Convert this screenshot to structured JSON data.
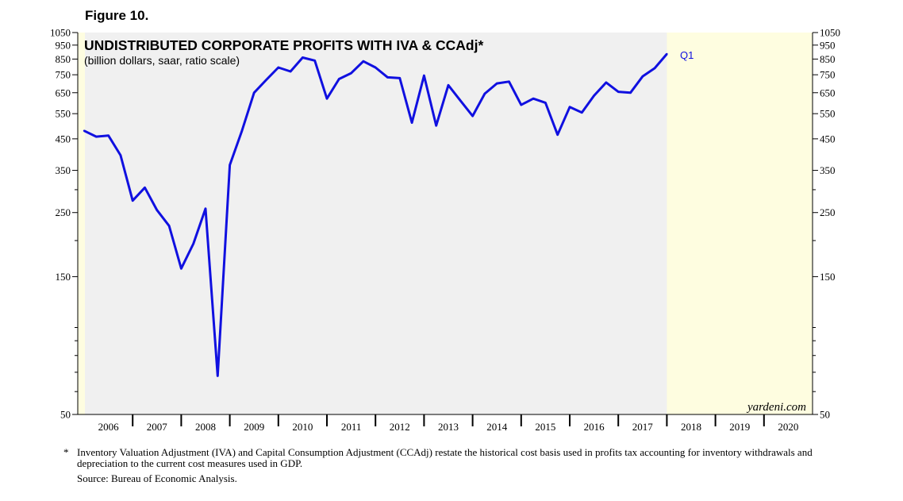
{
  "figure_label": "Figure 10.",
  "footnote": {
    "marker": "*",
    "text": "Inventory Valuation Adjustment (IVA) and Capital Consumption Adjustment (CCAdj) restate the historical cost basis used in profits tax accounting for inventory withdrawals and depreciation to the current cost measures used in GDP.",
    "source": "Source: Bureau of Economic Analysis."
  },
  "colors": {
    "line": "#1010e0",
    "data_background": "#f0f0f0",
    "chart_background": "#fefde0"
  },
  "chart_data": {
    "type": "line",
    "title": "UNDISTRIBUTED CORPORATE PROFITS WITH IVA & CCAdj*",
    "subtitle": "(billion dollars, saar, ratio scale)",
    "watermark": "yardeni.com",
    "end_label": "Q1",
    "y_scale": "log",
    "ylim": [
      50,
      1050
    ],
    "y_ticks": [
      50,
      150,
      250,
      350,
      450,
      550,
      650,
      750,
      850,
      950,
      1050
    ],
    "y_tick_labels_left": [
      "50",
      "150",
      "250",
      "350",
      "450",
      "550",
      "650",
      "750",
      "850",
      "950",
      "1050"
    ],
    "y_tick_labels_right": [
      "50",
      "150",
      "250",
      "350",
      "450",
      "550",
      "650",
      "750",
      "850",
      "950",
      "1050"
    ],
    "x_range": [
      2006,
      2021
    ],
    "x_ticks": [
      2006,
      2007,
      2008,
      2009,
      2010,
      2011,
      2012,
      2013,
      2014,
      2015,
      2016,
      2017,
      2018,
      2019,
      2020,
      2021
    ],
    "x_tick_labels": [
      "2006",
      "2007",
      "2008",
      "2009",
      "2010",
      "2011",
      "2012",
      "2013",
      "2014",
      "2015",
      "2016",
      "2017",
      "2018",
      "2019",
      "2020"
    ],
    "data_end": 2018.0,
    "series": [
      {
        "name": "Undistributed corporate profits",
        "x": [
          2006.0,
          2006.25,
          2006.5,
          2006.75,
          2007.0,
          2007.25,
          2007.5,
          2007.75,
          2008.0,
          2008.25,
          2008.5,
          2008.75,
          2009.0,
          2009.25,
          2009.5,
          2009.75,
          2010.0,
          2010.25,
          2010.5,
          2010.75,
          2011.0,
          2011.25,
          2011.5,
          2011.75,
          2012.0,
          2012.25,
          2012.5,
          2012.75,
          2013.0,
          2013.25,
          2013.5,
          2013.75,
          2014.0,
          2014.25,
          2014.5,
          2014.75,
          2015.0,
          2015.25,
          2015.5,
          2015.75,
          2016.0,
          2016.25,
          2016.5,
          2016.75,
          2017.0,
          2017.25,
          2017.5,
          2017.75,
          2018.0
        ],
        "values": [
          480,
          458,
          462,
          395,
          275,
          305,
          255,
          225,
          160,
          195,
          258,
          68,
          365,
          480,
          650,
          720,
          795,
          770,
          860,
          840,
          620,
          725,
          760,
          835,
          795,
          735,
          730,
          512,
          745,
          500,
          690,
          610,
          540,
          645,
          700,
          710,
          590,
          620,
          600,
          465,
          580,
          555,
          635,
          705,
          655,
          650,
          740,
          790,
          885
        ]
      }
    ]
  }
}
